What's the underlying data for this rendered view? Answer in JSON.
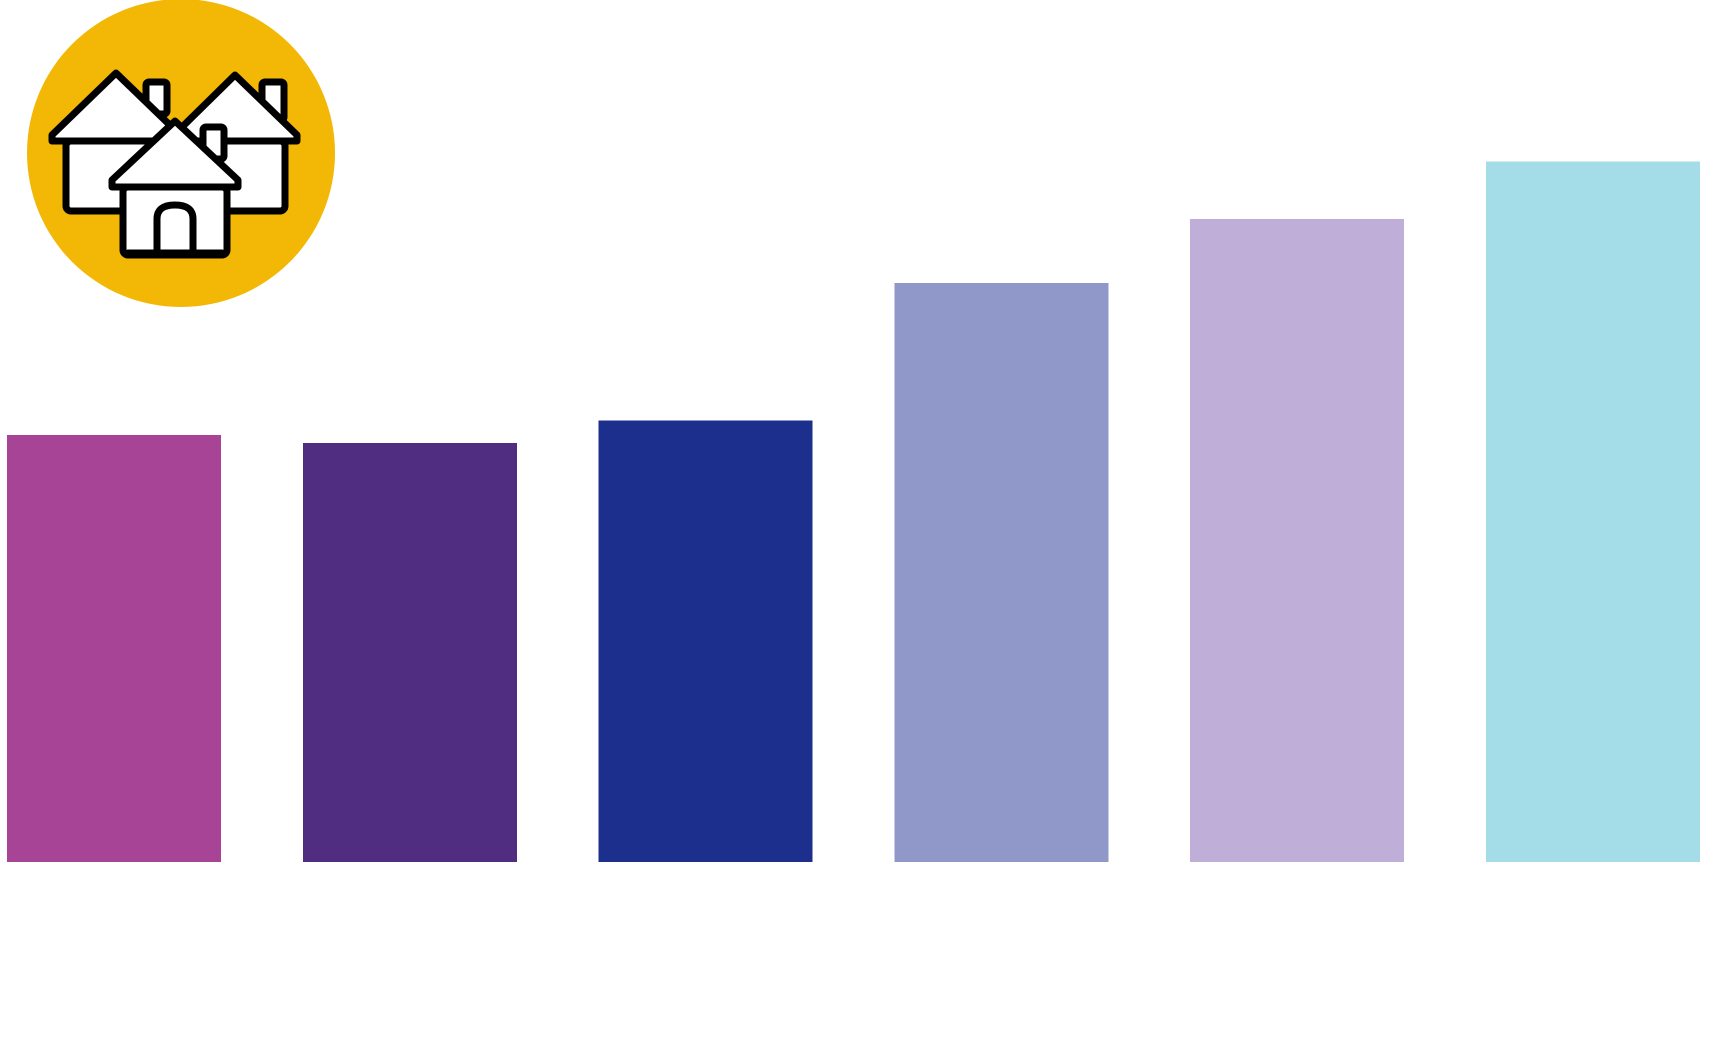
{
  "chart_data": {
    "type": "bar",
    "categories": [
      "",
      "",
      "",
      "",
      "",
      ""
    ],
    "values": [
      43.5,
      42.7,
      45.0,
      59.0,
      65.5,
      71.4
    ],
    "ylim": [
      0,
      86
    ],
    "grid": false,
    "colors": [
      "#a84496",
      "#512d82",
      "#1c2f8c",
      "#8f98c9",
      "#beaed8",
      "#a4dce8"
    ]
  },
  "badge": {
    "icon": "houses-icon",
    "background_color": "#f3b705"
  }
}
